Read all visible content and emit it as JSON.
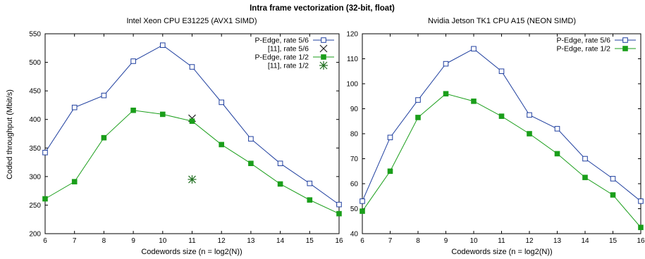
{
  "figure": {
    "title": "Intra frame vectorization (32-bit, float)"
  },
  "colors": {
    "series_5_6": "#1f3f9f",
    "series_1_2": "#1a9e1a",
    "ref_5_6": "#222222",
    "ref_1_2": "#1f6e1f"
  },
  "chart_data": [
    {
      "type": "line",
      "title": "Intel Xeon CPU E31225 (AVX1 SIMD)",
      "xlabel": "Codewords size (n = log2(N))",
      "ylabel": "Coded throughput (Mbit/s)",
      "xlim": [
        6,
        16
      ],
      "ylim": [
        200,
        550
      ],
      "x_ticks": [
        6,
        7,
        8,
        9,
        10,
        11,
        12,
        13,
        14,
        15,
        16
      ],
      "y_ticks": [
        200,
        250,
        300,
        350,
        400,
        450,
        500,
        550
      ],
      "grid": false,
      "legend_position": "top-right",
      "series": [
        {
          "name": "P-Edge, rate 5/6",
          "marker": "open-square",
          "color": "#1f3f9f",
          "x": [
            6,
            7,
            8,
            9,
            10,
            11,
            12,
            13,
            14,
            15,
            16
          ],
          "values": [
            342,
            421,
            442,
            502,
            530,
            492,
            430,
            366,
            323,
            288,
            251
          ]
        },
        {
          "name": "[11], rate 5/6",
          "marker": "cross",
          "color": "#222222",
          "x": [
            11
          ],
          "values": [
            402
          ]
        },
        {
          "name": "P-Edge, rate 1/2",
          "marker": "filled-square",
          "color": "#1a9e1a",
          "x": [
            6,
            7,
            8,
            9,
            10,
            11,
            12,
            13,
            14,
            15,
            16
          ],
          "values": [
            261,
            291,
            368,
            416,
            409,
            397,
            356,
            323,
            287,
            259,
            235
          ]
        },
        {
          "name": "[11], rate 1/2",
          "marker": "star",
          "color": "#1f6e1f",
          "x": [
            11
          ],
          "values": [
            295
          ]
        }
      ]
    },
    {
      "type": "line",
      "title": "Nvidia Jetson TK1 CPU A15 (NEON SIMD)",
      "xlabel": "Codewords size (n = log2(N))",
      "ylabel": "",
      "xlim": [
        6,
        16
      ],
      "ylim": [
        40,
        120
      ],
      "x_ticks": [
        6,
        7,
        8,
        9,
        10,
        11,
        12,
        13,
        14,
        15,
        16
      ],
      "y_ticks": [
        40,
        50,
        60,
        70,
        80,
        90,
        100,
        110,
        120
      ],
      "grid": false,
      "legend_position": "top-right",
      "series": [
        {
          "name": "P-Edge, rate 5/6",
          "marker": "open-square",
          "color": "#1f3f9f",
          "x": [
            6,
            7,
            8,
            9,
            10,
            11,
            12,
            13,
            14,
            15,
            16
          ],
          "values": [
            53,
            78.5,
            93.5,
            108,
            114,
            105,
            87.5,
            82,
            70,
            62,
            53
          ]
        },
        {
          "name": "P-Edge, rate 1/2",
          "marker": "filled-square",
          "color": "#1a9e1a",
          "x": [
            6,
            7,
            8,
            9,
            10,
            11,
            12,
            13,
            14,
            15,
            16
          ],
          "values": [
            49,
            65,
            86.5,
            96,
            93,
            87,
            80,
            72,
            62.5,
            55.5,
            42.5
          ]
        }
      ]
    }
  ]
}
